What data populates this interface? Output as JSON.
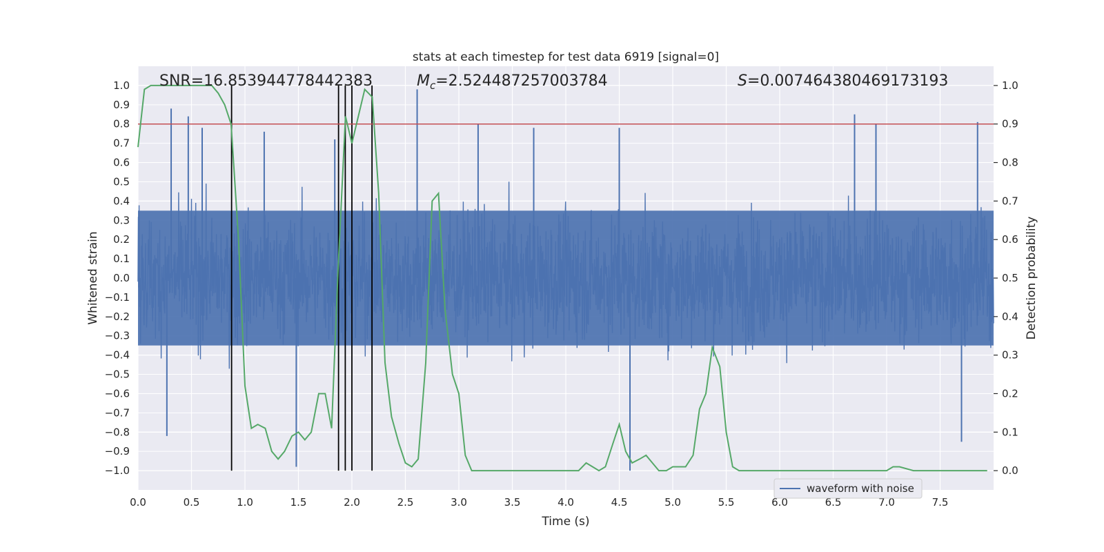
{
  "chart_data": {
    "type": "line",
    "title": "stats at each timestep for test data 6919 [signal=0]",
    "xlabel": "Time (s)",
    "ylabel": "Whitened strain",
    "y2label": "Detection probability",
    "xlim": [
      0,
      8
    ],
    "ylim": [
      -1.1,
      1.1
    ],
    "y2lim": [
      -0.05,
      1.05
    ],
    "x_ticks": [
      "0.0",
      "0.5",
      "1.0",
      "1.5",
      "2.0",
      "2.5",
      "3.0",
      "3.5",
      "4.0",
      "4.5",
      "5.0",
      "5.5",
      "6.0",
      "6.5",
      "7.0",
      "7.5"
    ],
    "y_ticks": [
      "1.0",
      "0.9",
      "0.8",
      "0.7",
      "0.6",
      "0.5",
      "0.4",
      "0.3",
      "0.2",
      "0.1",
      "0.0",
      "-0.1",
      "-0.2",
      "-0.3",
      "-0.4",
      "-0.5",
      "-0.6",
      "-0.7",
      "-0.8",
      "-0.9",
      "-1.0"
    ],
    "y2_ticks": [
      "1.0",
      "0.9",
      "0.8",
      "0.7",
      "0.6",
      "0.5",
      "0.4",
      "0.3",
      "0.2",
      "0.1",
      "0.0"
    ],
    "grid": true,
    "legend_position": "lower-right",
    "annotations": {
      "snr": "SNR=16.853944778442383",
      "mc_symbol": "M",
      "mc_subscript": "c",
      "mc_value": "=2.524487257003784",
      "s_symbol": "S",
      "s_value": "=0.007464380469173193"
    },
    "threshold": 0.9,
    "vertical_lines_x": [
      0.875,
      1.875,
      1.938,
      2.0,
      2.188
    ],
    "series": [
      {
        "name": "waveform with noise",
        "color": "#4c72b0",
        "envelope_spikes": [
          {
            "x": 0.31,
            "top": 0.88
          },
          {
            "x": 0.47,
            "top": 0.84
          },
          {
            "x": 0.6,
            "top": 0.78
          },
          {
            "x": 1.18,
            "top": 0.76
          },
          {
            "x": 1.48,
            "top": -0.98
          },
          {
            "x": 1.84,
            "top": 0.72
          },
          {
            "x": 2.61,
            "top": 0.98
          },
          {
            "x": 3.18,
            "top": 0.8
          },
          {
            "x": 3.7,
            "top": 0.78
          },
          {
            "x": 4.5,
            "top": 0.78
          },
          {
            "x": 4.6,
            "top": -1.0
          },
          {
            "x": 6.7,
            "top": 0.85
          },
          {
            "x": 6.9,
            "top": 0.8
          },
          {
            "x": 7.85,
            "top": 0.81
          },
          {
            "x": 7.7,
            "top": -0.85
          },
          {
            "x": 0.27,
            "top": -0.82
          }
        ]
      },
      {
        "name": "",
        "color": "#55a868",
        "axis": "right",
        "x": [
          0.0,
          0.06,
          0.12,
          0.19,
          0.25,
          0.31,
          0.37,
          0.44,
          0.5,
          0.56,
          0.62,
          0.69,
          0.75,
          0.81,
          0.87,
          0.94,
          1.0,
          1.06,
          1.12,
          1.19,
          1.25,
          1.31,
          1.37,
          1.44,
          1.5,
          1.56,
          1.62,
          1.69,
          1.75,
          1.81,
          1.87,
          1.94,
          2.0,
          2.06,
          2.12,
          2.19,
          2.25,
          2.31,
          2.37,
          2.44,
          2.5,
          2.56,
          2.62,
          2.69,
          2.75,
          2.81,
          2.87,
          2.94,
          3.0,
          3.06,
          3.12,
          3.19,
          3.25,
          3.31,
          3.37,
          3.5,
          3.62,
          3.75,
          3.87,
          4.0,
          4.12,
          4.19,
          4.25,
          4.31,
          4.37,
          4.44,
          4.5,
          4.56,
          4.62,
          4.69,
          4.75,
          4.81,
          4.87,
          4.94,
          5.0,
          5.06,
          5.12,
          5.19,
          5.25,
          5.31,
          5.37,
          5.44,
          5.5,
          5.56,
          5.62,
          5.75,
          5.87,
          6.0,
          6.12,
          6.25,
          6.37,
          6.5,
          6.62,
          6.75,
          6.87,
          7.0,
          7.06,
          7.12,
          7.25,
          7.37,
          7.5,
          7.62,
          7.75,
          7.87,
          7.94
        ],
        "values": [
          0.84,
          0.99,
          1.0,
          1.0,
          1.0,
          1.0,
          1.0,
          1.0,
          1.0,
          1.0,
          1.0,
          1.0,
          0.98,
          0.95,
          0.9,
          0.6,
          0.22,
          0.11,
          0.12,
          0.11,
          0.05,
          0.03,
          0.05,
          0.09,
          0.1,
          0.08,
          0.1,
          0.2,
          0.2,
          0.11,
          0.52,
          0.92,
          0.85,
          0.92,
          0.99,
          0.97,
          0.72,
          0.28,
          0.14,
          0.07,
          0.02,
          0.01,
          0.03,
          0.28,
          0.7,
          0.72,
          0.42,
          0.25,
          0.2,
          0.04,
          0.0,
          0.0,
          0.0,
          0.0,
          0.0,
          0.0,
          0.0,
          0.0,
          0.0,
          0.0,
          0.0,
          0.02,
          0.01,
          0.0,
          0.01,
          0.07,
          0.12,
          0.05,
          0.02,
          0.03,
          0.04,
          0.02,
          0.0,
          0.0,
          0.01,
          0.01,
          0.01,
          0.04,
          0.16,
          0.2,
          0.32,
          0.27,
          0.1,
          0.01,
          0.0,
          0.0,
          0.0,
          0.0,
          0.0,
          0.0,
          0.0,
          0.0,
          0.0,
          0.0,
          0.0,
          0.0,
          0.01,
          0.01,
          0.0,
          0.0,
          0.0,
          0.0,
          0.0,
          0.0,
          0.0
        ]
      }
    ]
  }
}
